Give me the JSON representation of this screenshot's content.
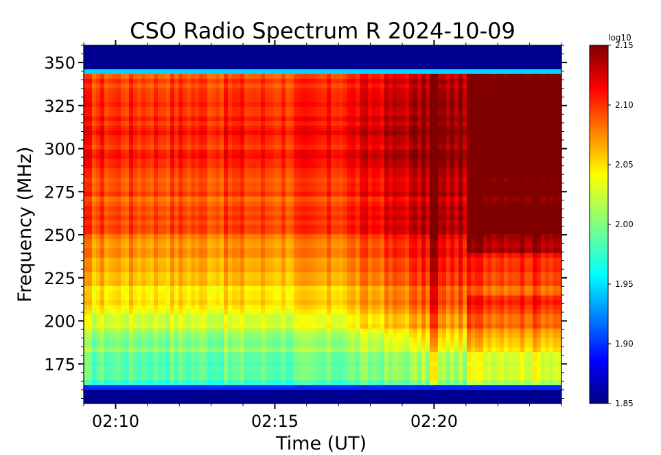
{
  "chart_data": {
    "type": "heatmap",
    "title": "CSO Radio Spectrum R 2024-10-09",
    "xlabel": "Time (UT)",
    "ylabel": "Frequency (MHz)",
    "xlim": [
      "02:09:00",
      "02:24:00"
    ],
    "ylim": [
      152,
      360
    ],
    "x_ticks": [
      "02:10",
      "02:15",
      "02:20"
    ],
    "y_ticks": [
      175,
      200,
      225,
      250,
      275,
      300,
      325,
      350
    ],
    "colorbar": {
      "label": "log10",
      "range": [
        1.85,
        2.15
      ],
      "ticks": [
        "1.85",
        "1.90",
        "1.95",
        "2.00",
        "2.05",
        "2.10",
        "2.15"
      ],
      "colormap": "jet"
    },
    "grid": false,
    "band_edges": {
      "upper_cutoff_mhz": 345,
      "lower_cutoff_mhz": 160
    },
    "features": [
      {
        "time_ut": "02:20:00",
        "type": "narrow vertical burst"
      },
      {
        "time_ut": "02:16:00",
        "type": "intensity brightening start"
      }
    ]
  }
}
